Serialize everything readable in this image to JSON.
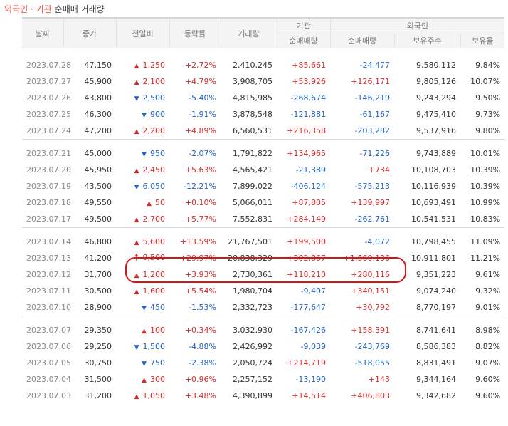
{
  "header": {
    "title_prefix": "외국인 · 기관",
    "title_suffix": "순매매 거래량"
  },
  "columns": {
    "date": "날짜",
    "close": "종가",
    "change": "전일비",
    "rate": "등락률",
    "volume": "거래량",
    "inst_group": "기관",
    "foreign_group": "외국인",
    "inst_net": "순매매량",
    "foreign_net": "순매매량",
    "foreign_holdings": "보유주수",
    "foreign_ratio": "보유율"
  },
  "groups": [
    {
      "rows": [
        {
          "date": "2023.07.28",
          "close": "47,150",
          "dir": "up",
          "change": "1,250",
          "rate": "+2.72%",
          "volume": "2,410,245",
          "inst": "+85,661",
          "foreign": "-24,477",
          "holdings": "9,580,112",
          "ratio": "9.84%"
        },
        {
          "date": "2023.07.27",
          "close": "45,900",
          "dir": "up",
          "change": "2,100",
          "rate": "+4.79%",
          "volume": "3,908,705",
          "inst": "+53,926",
          "foreign": "+126,171",
          "holdings": "9,805,126",
          "ratio": "10.07%"
        },
        {
          "date": "2023.07.26",
          "close": "43,800",
          "dir": "down",
          "change": "2,500",
          "rate": "-5.40%",
          "volume": "4,815,985",
          "inst": "-268,674",
          "foreign": "-146,219",
          "holdings": "9,243,294",
          "ratio": "9.50%"
        },
        {
          "date": "2023.07.25",
          "close": "46,300",
          "dir": "down",
          "change": "900",
          "rate": "-1.91%",
          "volume": "3,878,548",
          "inst": "-121,881",
          "foreign": "-61,167",
          "holdings": "9,475,410",
          "ratio": "9.73%"
        },
        {
          "date": "2023.07.24",
          "close": "47,200",
          "dir": "up",
          "change": "2,200",
          "rate": "+4.89%",
          "volume": "6,560,531",
          "inst": "+216,358",
          "foreign": "-203,282",
          "holdings": "9,537,916",
          "ratio": "9.80%"
        }
      ]
    },
    {
      "rows": [
        {
          "date": "2023.07.21",
          "close": "45,000",
          "dir": "down",
          "change": "950",
          "rate": "-2.07%",
          "volume": "1,791,822",
          "inst": "+134,965",
          "foreign": "-71,226",
          "holdings": "9,743,889",
          "ratio": "10.01%"
        },
        {
          "date": "2023.07.20",
          "close": "45,950",
          "dir": "up",
          "change": "2,450",
          "rate": "+5.63%",
          "volume": "4,565,421",
          "inst": "-21,389",
          "foreign": "+734",
          "holdings": "10,108,703",
          "ratio": "10.39%"
        },
        {
          "date": "2023.07.19",
          "close": "43,500",
          "dir": "down",
          "change": "6,050",
          "rate": "-12.21%",
          "volume": "7,899,022",
          "inst": "-406,124",
          "foreign": "-575,213",
          "holdings": "10,116,939",
          "ratio": "10.39%"
        },
        {
          "date": "2023.07.18",
          "close": "49,550",
          "dir": "up",
          "change": "50",
          "rate": "+0.10%",
          "volume": "5,066,011",
          "inst": "+87,805",
          "foreign": "+139,997",
          "holdings": "10,693,491",
          "ratio": "10.99%"
        },
        {
          "date": "2023.07.17",
          "close": "49,500",
          "dir": "up",
          "change": "2,700",
          "rate": "+5.77%",
          "volume": "7,552,831",
          "inst": "+284,149",
          "foreign": "-262,761",
          "holdings": "10,541,531",
          "ratio": "10.83%"
        }
      ]
    },
    {
      "rows": [
        {
          "date": "2023.07.14",
          "close": "46,800",
          "dir": "up",
          "change": "5,600",
          "rate": "+13.59%",
          "volume": "21,767,501",
          "inst": "+199,500",
          "foreign": "-4,072",
          "holdings": "10,798,455",
          "ratio": "11.09%"
        },
        {
          "date": "2023.07.13",
          "close": "41,200",
          "dir": "limit",
          "change": "9,500",
          "rate": "+29.97%",
          "volume": "20,838,329",
          "inst": "+302,867",
          "foreign": "+1,560,136",
          "holdings": "10,911,801",
          "ratio": "11.21%"
        },
        {
          "date": "2023.07.12",
          "close": "31,700",
          "dir": "up",
          "change": "1,200",
          "rate": "+3.93%",
          "volume": "2,730,361",
          "inst": "+118,210",
          "foreign": "+280,116",
          "holdings": "9,351,223",
          "ratio": "9.61%"
        },
        {
          "date": "2023.07.11",
          "close": "30,500",
          "dir": "up",
          "change": "1,600",
          "rate": "+5.54%",
          "volume": "1,980,704",
          "inst": "-9,407",
          "foreign": "+340,151",
          "holdings": "9,074,240",
          "ratio": "9.32%"
        },
        {
          "date": "2023.07.10",
          "close": "28,900",
          "dir": "down",
          "change": "450",
          "rate": "-1.53%",
          "volume": "2,332,723",
          "inst": "-177,647",
          "foreign": "+30,792",
          "holdings": "8,770,197",
          "ratio": "9.01%"
        }
      ]
    },
    {
      "rows": [
        {
          "date": "2023.07.07",
          "close": "29,350",
          "dir": "up",
          "change": "100",
          "rate": "+0.34%",
          "volume": "3,032,930",
          "inst": "-167,426",
          "foreign": "+158,391",
          "holdings": "8,741,641",
          "ratio": "8.98%"
        },
        {
          "date": "2023.07.06",
          "close": "29,250",
          "dir": "down",
          "change": "1,500",
          "rate": "-4.88%",
          "volume": "2,426,992",
          "inst": "-9,039",
          "foreign": "-243,769",
          "holdings": "8,586,383",
          "ratio": "8.82%"
        },
        {
          "date": "2023.07.05",
          "close": "30,750",
          "dir": "down",
          "change": "750",
          "rate": "-2.38%",
          "volume": "2,050,724",
          "inst": "+214,719",
          "foreign": "-518,055",
          "holdings": "8,831,491",
          "ratio": "9.07%"
        },
        {
          "date": "2023.07.04",
          "close": "31,500",
          "dir": "up",
          "change": "300",
          "rate": "+0.96%",
          "volume": "2,257,152",
          "inst": "-13,190",
          "foreign": "+143",
          "holdings": "9,344,164",
          "ratio": "9.60%"
        },
        {
          "date": "2023.07.03",
          "close": "31,200",
          "dir": "up",
          "change": "1,050",
          "rate": "+3.48%",
          "volume": "4,390,899",
          "inst": "+14,514",
          "foreign": "+406,803",
          "holdings": "9,342,682",
          "ratio": "9.60%"
        }
      ]
    }
  ],
  "icons": {
    "up": "▲",
    "down": "▼",
    "limit": "🠕"
  },
  "colors": {
    "up": "#d62b2b",
    "down": "#2462c4",
    "title_accent": "#e24a3c",
    "highlight": "#d01818"
  }
}
